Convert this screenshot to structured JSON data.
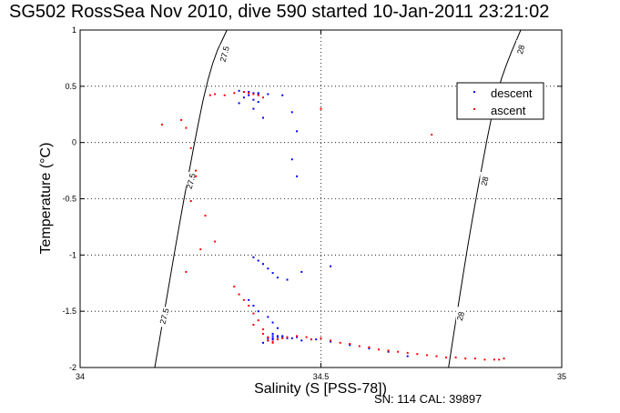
{
  "chart_data": {
    "type": "scatter",
    "title": "SG502 RossSea Nov 2010, dive 590 started 10-Jan-2011 23:21:02",
    "xlabel": "Salinity (S [PSS-78])",
    "ylabel": "Temperature (°C)",
    "xlim": [
      34,
      35
    ],
    "ylim": [
      -2,
      1
    ],
    "xticks": [
      "34",
      "34.5",
      "35"
    ],
    "yticks": [
      "-2",
      "-1.5",
      "-1",
      "-0.5",
      "0",
      "0.5",
      "1"
    ],
    "grid": true,
    "legend_position": "top-right",
    "series": [
      {
        "name": "descent",
        "color": "#0000ff",
        "x": [
          34.33,
          34.34,
          34.35,
          34.36,
          34.37,
          34.35,
          34.34,
          34.36,
          34.33,
          34.37,
          34.36,
          34.38,
          34.39,
          34.42,
          34.37,
          34.44,
          34.45,
          34.44,
          34.45,
          34.36,
          34.37,
          34.38,
          34.39,
          34.4,
          34.41,
          34.43,
          34.46,
          34.52,
          34.35,
          34.36,
          34.37,
          34.39,
          34.4,
          34.41,
          34.4,
          34.4,
          34.41,
          34.39,
          34.4,
          34.42,
          34.44,
          34.46,
          34.49,
          34.52,
          34.56,
          34.6,
          34.64,
          34.68,
          34.38,
          34.39,
          34.4,
          34.41,
          34.42,
          34.43,
          34.45,
          34.48
        ],
        "y": [
          0.46,
          0.45,
          0.45,
          0.44,
          0.43,
          0.42,
          0.4,
          0.38,
          0.35,
          0.36,
          0.3,
          0.22,
          0.43,
          0.42,
          0.44,
          0.27,
          0.1,
          -0.15,
          -0.3,
          -1.02,
          -1.05,
          -1.08,
          -1.12,
          -1.16,
          -1.2,
          -1.22,
          -1.15,
          -1.1,
          -1.4,
          -1.45,
          -1.5,
          -1.55,
          -1.6,
          -1.65,
          -1.7,
          -1.74,
          -1.72,
          -1.76,
          -1.75,
          -1.73,
          -1.74,
          -1.76,
          -1.75,
          -1.77,
          -1.8,
          -1.83,
          -1.86,
          -1.9,
          -1.78,
          -1.74,
          -1.72,
          -1.73,
          -1.72,
          -1.74,
          -1.73,
          -1.75
        ]
      },
      {
        "name": "ascent",
        "color": "#ff0000",
        "x": [
          34.17,
          34.21,
          34.22,
          34.23,
          34.24,
          34.27,
          34.28,
          34.3,
          34.32,
          34.34,
          34.35,
          34.36,
          34.37,
          34.38,
          34.5,
          34.73,
          34.23,
          34.24,
          34.26,
          34.22,
          34.25,
          34.28,
          34.32,
          34.33,
          34.34,
          34.35,
          34.36,
          34.37,
          34.36,
          34.38,
          34.38,
          34.39,
          34.39,
          34.4,
          34.4,
          34.41,
          34.42,
          34.43,
          34.45,
          34.47,
          34.48,
          34.5,
          34.52,
          34.54,
          34.56,
          34.58,
          34.6,
          34.62,
          34.64,
          34.66,
          34.68,
          34.7,
          34.72,
          34.74,
          34.76,
          34.78,
          34.8,
          34.82,
          34.84,
          34.86,
          34.87,
          34.88
        ],
        "y": [
          0.16,
          0.2,
          0.13,
          -0.05,
          -0.25,
          0.42,
          0.43,
          0.42,
          0.44,
          0.45,
          0.44,
          0.43,
          0.42,
          0.4,
          0.3,
          0.07,
          -0.52,
          -0.3,
          -0.65,
          -1.15,
          -0.95,
          -0.88,
          -1.28,
          -1.35,
          -1.4,
          -1.45,
          -1.52,
          -1.58,
          -1.62,
          -1.66,
          -1.7,
          -1.73,
          -1.76,
          -1.78,
          -1.77,
          -1.75,
          -1.74,
          -1.73,
          -1.72,
          -1.73,
          -1.75,
          -1.74,
          -1.76,
          -1.78,
          -1.79,
          -1.81,
          -1.82,
          -1.84,
          -1.85,
          -1.86,
          -1.87,
          -1.88,
          -1.89,
          -1.9,
          -1.91,
          -1.91,
          -1.92,
          -1.92,
          -1.93,
          -1.93,
          -1.93,
          -1.92
        ]
      }
    ],
    "isopycnals": [
      {
        "label": "27.5",
        "x": [
          34.155,
          34.165,
          34.175,
          34.185,
          34.195,
          34.205,
          34.215,
          34.225,
          34.235,
          34.245,
          34.255,
          34.265,
          34.275,
          34.285,
          34.295,
          34.305
        ],
        "y": [
          -2.0,
          -1.75,
          -1.5,
          -1.25,
          -1.0,
          -0.76,
          -0.52,
          -0.29,
          -0.06,
          0.16,
          0.37,
          0.55,
          0.7,
          0.82,
          0.91,
          1.0
        ],
        "label_positions": [
          {
            "x": 34.175,
            "y": -1.55
          },
          {
            "x": 34.23,
            "y": -0.35
          },
          {
            "x": 34.3,
            "y": 0.78
          }
        ]
      },
      {
        "label": "28",
        "x": [
          34.765,
          34.775,
          34.785,
          34.795,
          34.805,
          34.815,
          34.825,
          34.835,
          34.845,
          34.855,
          34.865,
          34.875,
          34.885,
          34.895,
          34.905,
          34.915
        ],
        "y": [
          -2.0,
          -1.72,
          -1.45,
          -1.18,
          -0.92,
          -0.67,
          -0.43,
          -0.2,
          0.03,
          0.24,
          0.42,
          0.57,
          0.69,
          0.8,
          0.9,
          1.0
        ],
        "label_positions": [
          {
            "x": 34.79,
            "y": -1.55
          },
          {
            "x": 34.84,
            "y": -0.35
          },
          {
            "x": 34.915,
            "y": 0.82
          }
        ]
      }
    ]
  },
  "footer": {
    "serial": "SN: 114  CAL: 39897"
  }
}
